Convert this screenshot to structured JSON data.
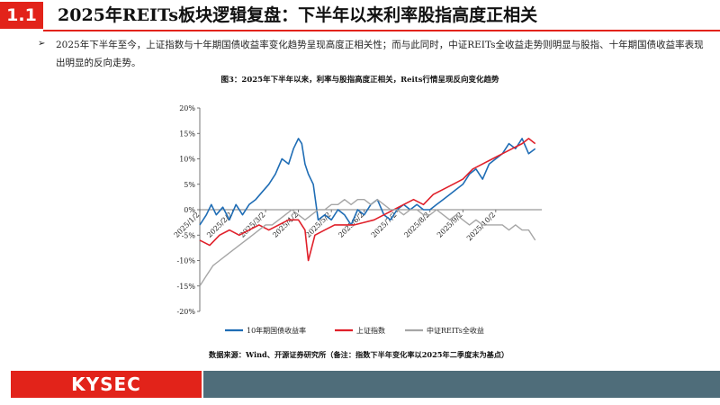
{
  "header": {
    "number": "1.1",
    "title": "2025年REITs板块逻辑复盘：下半年以来利率股指高度正相关"
  },
  "bullet": {
    "text": "2025年下半年至今，上证指数与十年期国债收益率变化趋势呈现高度正相关性；而与此同时，中证REITs全收益走势则明显与股指、十年期国债收益率表现出明显的反向走势。"
  },
  "figure": {
    "title": "图3：2025年下半年以来，利率与股指高度正相关，Reits行情呈现反向变化趋势"
  },
  "chart_data": {
    "type": "line",
    "x_ticks": [
      "2025/1/2",
      "2025/2/2",
      "2025/3/2",
      "2025/4/2",
      "2025/5/2",
      "2025/6/2",
      "2025/7/2",
      "2025/8/2",
      "2025/9/2",
      "2025/10/2"
    ],
    "x_range": [
      0,
      10.4
    ],
    "y_ticks": [
      "-20%",
      "-15%",
      "-10%",
      "-5%",
      "0%",
      "5%",
      "10%",
      "15%",
      "20%"
    ],
    "ylim": [
      -20,
      20
    ],
    "grid": false,
    "legend_position": "bottom",
    "series": [
      {
        "name": "10年期国债收益率",
        "color": "#1f6db5",
        "x": [
          0,
          0.2,
          0.35,
          0.5,
          0.7,
          0.9,
          1.1,
          1.3,
          1.5,
          1.7,
          1.9,
          2.1,
          2.3,
          2.5,
          2.7,
          2.85,
          3.0,
          3.1,
          3.2,
          3.3,
          3.45,
          3.6,
          3.8,
          4.0,
          4.2,
          4.4,
          4.6,
          4.8,
          5.0,
          5.2,
          5.4,
          5.6,
          5.8,
          6.0,
          6.2,
          6.4,
          6.6,
          6.8,
          7.0,
          7.2,
          7.4,
          7.6,
          7.8,
          8.0,
          8.2,
          8.4,
          8.6,
          8.8,
          9.0,
          9.2,
          9.4,
          9.6,
          9.8,
          10.0,
          10.2
        ],
        "y": [
          -3,
          -1,
          1,
          -1,
          0.5,
          -2,
          1,
          -1,
          1,
          2,
          3.5,
          5,
          7,
          10,
          9,
          12,
          14,
          13,
          9,
          7,
          5,
          -2,
          -1,
          -2,
          0,
          -1,
          -3,
          0,
          -1,
          1,
          2,
          -1,
          -2,
          0,
          1,
          0,
          1,
          0,
          0,
          1,
          2,
          3,
          4,
          5,
          7,
          8,
          6,
          9,
          10,
          11,
          13,
          12,
          14,
          11,
          12
        ]
      },
      {
        "name": "上证指数",
        "color": "#e0202a",
        "x": [
          0,
          0.3,
          0.6,
          0.9,
          1.2,
          1.5,
          1.8,
          2.1,
          2.4,
          2.7,
          3.0,
          3.2,
          3.3,
          3.5,
          3.8,
          4.1,
          4.4,
          4.7,
          5.0,
          5.3,
          5.6,
          5.9,
          6.2,
          6.5,
          6.8,
          7.1,
          7.4,
          7.7,
          8.0,
          8.3,
          8.6,
          8.9,
          9.2,
          9.5,
          9.8,
          10.0,
          10.2
        ],
        "y": [
          -6,
          -7,
          -5,
          -4,
          -5,
          -4,
          -3,
          -4,
          -3,
          -2,
          -2,
          -4,
          -10,
          -5,
          -4,
          -3,
          -3,
          -3,
          -2.5,
          -2,
          -1,
          0,
          1,
          2,
          1,
          3,
          4,
          5,
          6,
          8,
          9,
          10,
          11,
          12,
          13,
          14,
          13
        ]
      },
      {
        "name": "中证REITs全收益",
        "color": "#a6a6a6",
        "x": [
          0,
          0.2,
          0.4,
          0.6,
          0.8,
          1.0,
          1.2,
          1.4,
          1.6,
          1.8,
          2.0,
          2.2,
          2.4,
          2.6,
          2.8,
          3.0,
          3.2,
          3.4,
          3.6,
          3.8,
          4.0,
          4.2,
          4.4,
          4.6,
          4.8,
          5.0,
          5.2,
          5.4,
          5.6,
          5.8,
          6.0,
          6.2,
          6.4,
          6.6,
          6.8,
          7.0,
          7.2,
          7.4,
          7.6,
          7.8,
          8.0,
          8.2,
          8.4,
          8.6,
          8.8,
          9.0,
          9.2,
          9.4,
          9.6,
          9.8,
          10.0,
          10.2
        ],
        "y": [
          -15,
          -13,
          -11,
          -10,
          -9,
          -8,
          -7,
          -6,
          -5,
          -4,
          -3,
          -3,
          -2,
          -1,
          0,
          -1,
          -2,
          -1,
          0,
          0,
          1,
          1,
          2,
          1,
          2,
          2,
          1,
          2,
          1,
          0,
          0,
          -1,
          0,
          0,
          -1,
          -1,
          0,
          -1,
          -2,
          -1,
          -2,
          -3,
          -2,
          -3,
          -3,
          -3,
          -3,
          -4,
          -3,
          -4,
          -4,
          -6
        ]
      }
    ]
  },
  "source": {
    "text": "数据来源：Wind、开源证券研究所（备注：指数下半年变化率以2025年二季度末为基点）"
  },
  "footer": {
    "logo": "KYSEC"
  }
}
